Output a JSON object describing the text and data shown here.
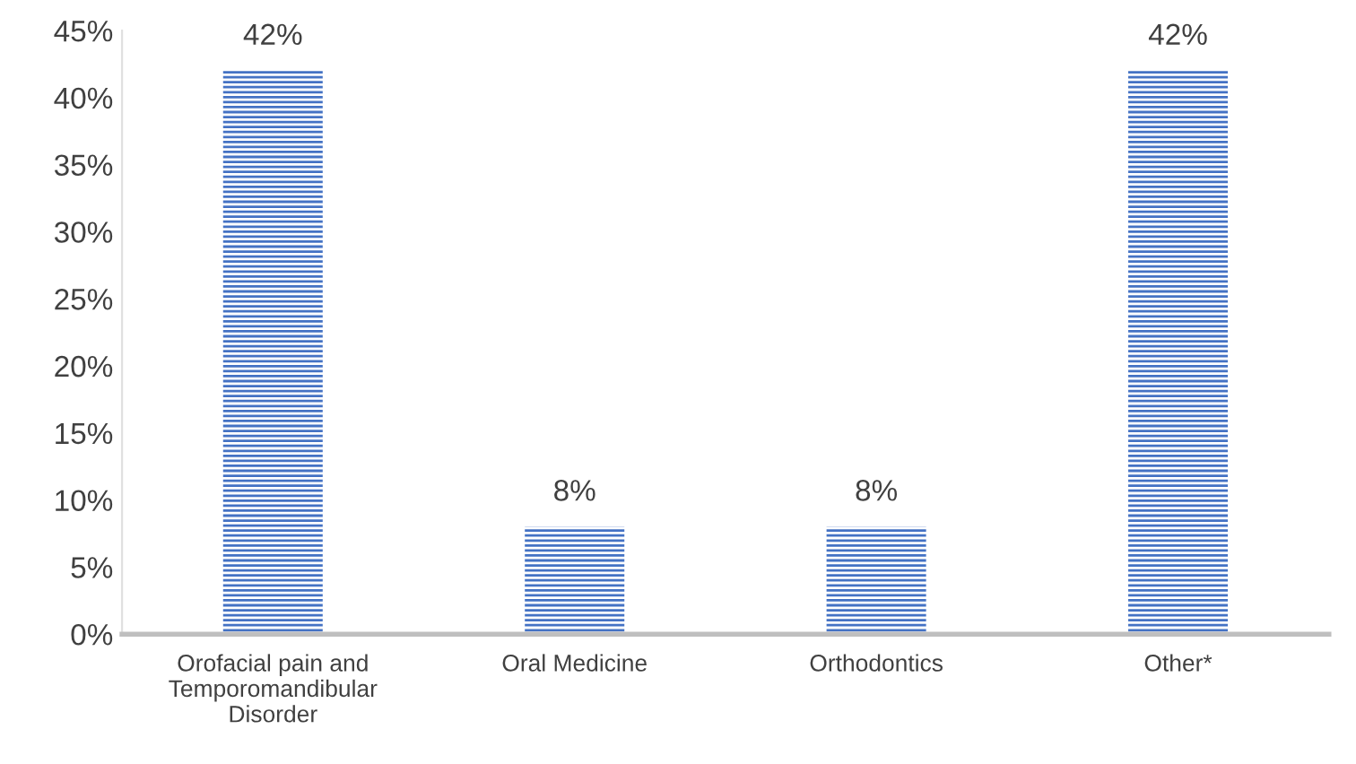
{
  "chart_data": {
    "type": "bar",
    "categories": [
      "Orofacial pain and\nTemporomandibular\nDisorder",
      "Oral Medicine",
      "Orthodontics",
      "Other*"
    ],
    "values": [
      42,
      8,
      8,
      42
    ],
    "value_labels": [
      "42%",
      "8%",
      "8%",
      "42%"
    ],
    "color": "#4472c4",
    "ylim": [
      0,
      45
    ],
    "yticks": [
      {
        "value": 0,
        "label": "0%"
      },
      {
        "value": 5,
        "label": "5%"
      },
      {
        "value": 10,
        "label": "10%"
      },
      {
        "value": 15,
        "label": "15%"
      },
      {
        "value": 20,
        "label": "20%"
      },
      {
        "value": 25,
        "label": "25%"
      },
      {
        "value": 30,
        "label": "30%"
      },
      {
        "value": 35,
        "label": "35%"
      },
      {
        "value": 40,
        "label": "40%"
      },
      {
        "value": 45,
        "label": "45%"
      }
    ],
    "grid": false,
    "legend": false
  }
}
